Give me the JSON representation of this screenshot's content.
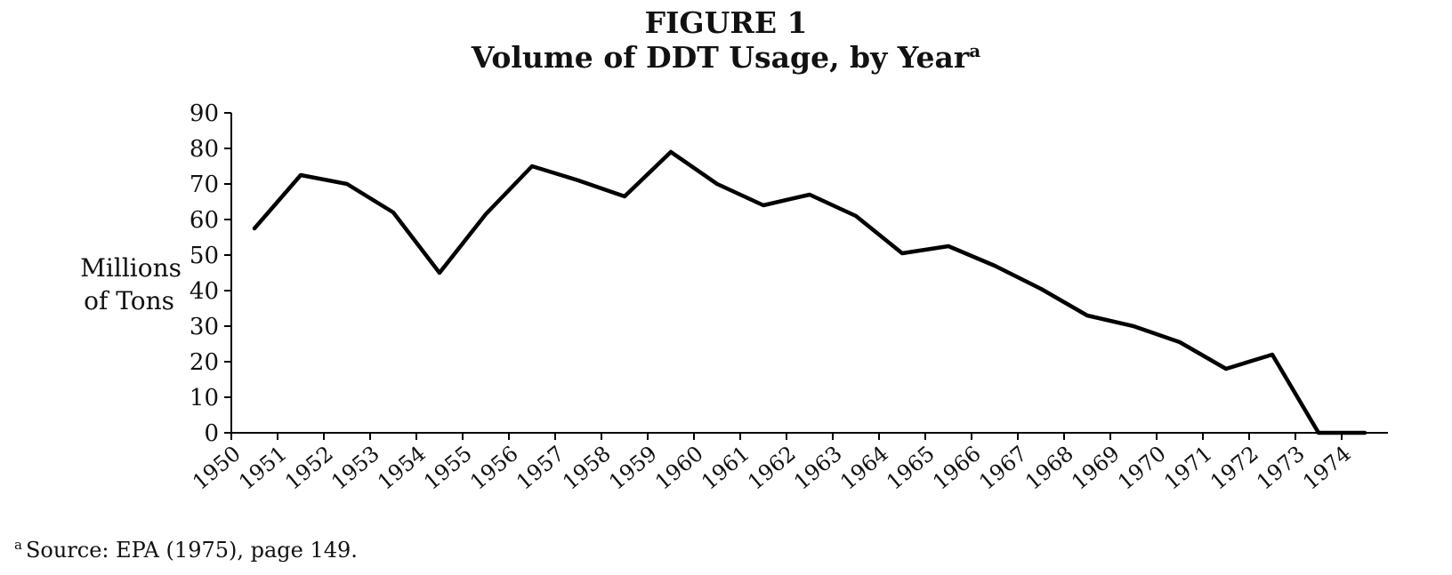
{
  "chart_data": {
    "type": "line",
    "title": "FIGURE 1",
    "subtitle": "Volume of DDT Usage, by Year",
    "subtitle_marker": "a",
    "ylabel_line1": "Millions",
    "ylabel_line2": "of Tons",
    "xlabel": "",
    "ylim": [
      0,
      90
    ],
    "yticks": [
      0,
      10,
      20,
      30,
      40,
      50,
      60,
      70,
      80,
      90
    ],
    "xlim": [
      1950,
      1974
    ],
    "xticks": [
      "1950",
      "1951",
      "1952",
      "1953",
      "1954",
      "1955",
      "1956",
      "1957",
      "1958",
      "1959",
      "1960",
      "1961",
      "1962",
      "1963",
      "1964",
      "1965",
      "1966",
      "1967",
      "1968",
      "1969",
      "1970",
      "1971",
      "1972",
      "1973",
      "1974"
    ],
    "grid": false,
    "legend": "none",
    "series": [
      {
        "x": [
          1950.5,
          1951.5,
          1952.5,
          1953.5,
          1954.5,
          1955.5,
          1956.5,
          1957.5,
          1958.5,
          1959.5,
          1960.5,
          1961.5,
          1962.5,
          1963.5,
          1964.5,
          1965.5,
          1966.5,
          1967.5,
          1968.5,
          1969.5,
          1970.5,
          1971.5,
          1972.5,
          1973.5,
          1974.5
        ],
        "values": [
          57.5,
          72.5,
          70,
          62,
          45,
          61.5,
          75,
          71,
          66.5,
          79,
          70,
          64,
          67,
          61,
          50.5,
          52.5,
          47,
          40.5,
          33,
          30,
          25.5,
          18,
          22,
          0,
          0
        ]
      }
    ],
    "line_color": "#000000"
  },
  "footnote": {
    "marker": "a",
    "text": "Source: EPA (1975), page 149."
  }
}
